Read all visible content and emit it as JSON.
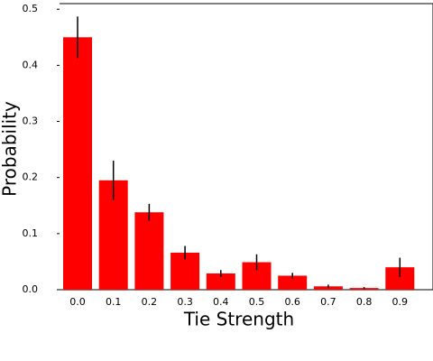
{
  "chart_data": {
    "type": "bar",
    "x_label": "Tie Strength",
    "y_label": "Probability",
    "categories": [
      "0.0",
      "0.1",
      "0.2",
      "0.3",
      "0.4",
      "0.5",
      "0.6",
      "0.7",
      "0.8",
      "0.9"
    ],
    "values": [
      0.45,
      0.195,
      0.138,
      0.066,
      0.029,
      0.049,
      0.025,
      0.006,
      0.003,
      0.04
    ],
    "errors": [
      0.037,
      0.035,
      0.015,
      0.012,
      0.006,
      0.014,
      0.005,
      0.003,
      0.002,
      0.017
    ],
    "color": "#ff0000",
    "error_color": "#000000",
    "ylim": [
      0,
      0.51
    ],
    "yticks": [
      {
        "value": 0,
        "label": "0.0"
      },
      0.1,
      0.2,
      0.3,
      0.4,
      0.5
    ]
  }
}
